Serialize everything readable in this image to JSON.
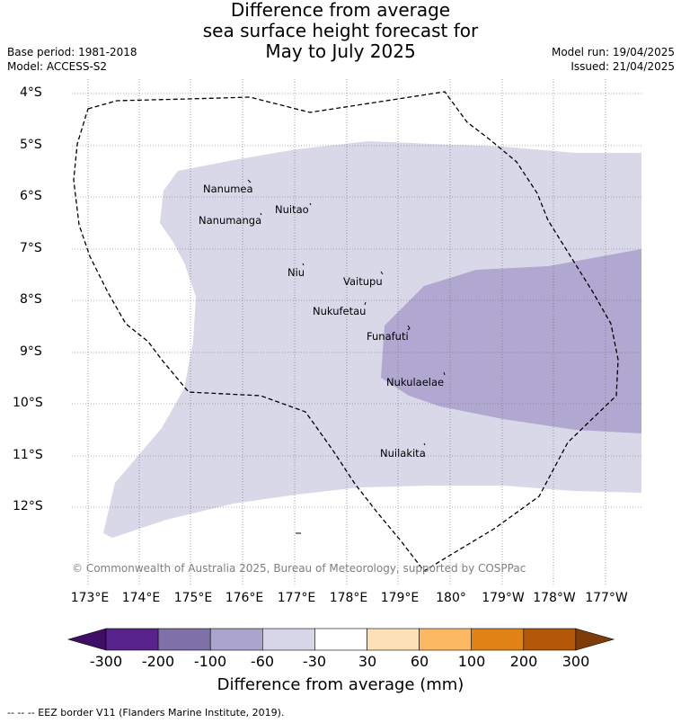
{
  "title": {
    "line1": "Difference from average",
    "line2": "sea surface height forecast for",
    "line3": "May to July 2025"
  },
  "meta": {
    "base_period": "Base period: 1981-2018",
    "model": "Model: ACCESS-S2",
    "model_run": "Model run: 19/04/2025",
    "issued": "Issued: 21/04/2025"
  },
  "map": {
    "lat_labels": [
      "4°S",
      "5°S",
      "6°S",
      "7°S",
      "8°S",
      "9°S",
      "10°S",
      "11°S",
      "12°S"
    ],
    "lon_labels": [
      "173°E",
      "174°E",
      "175°E",
      "176°E",
      "177°E",
      "178°E",
      "179°E",
      "180°",
      "179°W",
      "178°W",
      "177°W"
    ],
    "islands": [
      {
        "name": "Nanumea"
      },
      {
        "name": "Nuitao"
      },
      {
        "name": "Nanumanga"
      },
      {
        "name": "Niu"
      },
      {
        "name": "Vaitupu"
      },
      {
        "name": "Nukufetau"
      },
      {
        "name": "Funafuti"
      },
      {
        "name": "Nukulaelae"
      },
      {
        "name": "Nuilakita"
      }
    ],
    "copyright": "© Commonwealth of Australia 2025, Bureau of Meteorology, supported by COSPPac",
    "shading": [
      {
        "category": "-60 to -30",
        "color": "#d8d8e8"
      },
      {
        "category": "-100 to -60",
        "color": "#b0a8d0"
      }
    ],
    "eez_line_style": "dashed black"
  },
  "colorbar": {
    "title": "Difference from average (mm)",
    "labels": [
      "-300",
      "-200",
      "-100",
      "-60",
      "-30",
      "30",
      "60",
      "100",
      "200",
      "300"
    ],
    "colors": [
      "#3f0f68",
      "#59238d",
      "#7f71a8",
      "#aba4cd",
      "#d6d6e8",
      "#ffffff",
      "#fee0b6",
      "#fdb863",
      "#e08214",
      "#b35806",
      "#7f3b08"
    ]
  },
  "footnote": "--  --  -- EEZ border V11 (Flanders Marine Institute, 2019)."
}
